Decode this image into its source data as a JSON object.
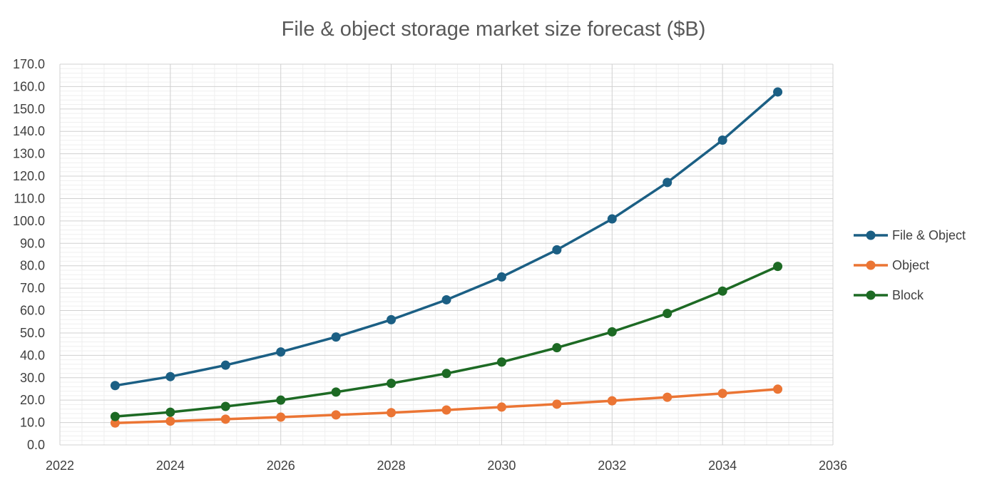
{
  "chart_data": {
    "type": "line",
    "title": "File & object storage market size forecast ($B)",
    "xlabel": "",
    "ylabel": "",
    "xlim": [
      2022,
      2036
    ],
    "ylim": [
      0,
      170
    ],
    "x_ticks": [
      2022,
      2024,
      2026,
      2028,
      2030,
      2032,
      2034,
      2036
    ],
    "x_tick_labels": [
      "2022",
      "2024",
      "2026",
      "2028",
      "2030",
      "2032",
      "2034",
      "2036"
    ],
    "y_ticks": [
      0,
      10,
      20,
      30,
      40,
      50,
      60,
      70,
      80,
      90,
      100,
      110,
      120,
      130,
      140,
      150,
      160,
      170
    ],
    "y_tick_labels": [
      "0.0",
      "10.0",
      "20.0",
      "30.0",
      "40.0",
      "50.0",
      "60.0",
      "70.0",
      "80.0",
      "90.0",
      "100.0",
      "110.0",
      "120.0",
      "130.0",
      "140.0",
      "150.0",
      "160.0",
      "170.0"
    ],
    "grid": true,
    "legend_position": "right",
    "x": [
      2023,
      2024,
      2025,
      2026,
      2027,
      2028,
      2029,
      2030,
      2031,
      2032,
      2033,
      2034,
      2035
    ],
    "series": [
      {
        "name": "File & Object",
        "color": "#1b5f84",
        "values": [
          26.5,
          30.5,
          35.6,
          41.5,
          48.2,
          55.9,
          64.8,
          75.0,
          87.1,
          100.9,
          117.2,
          136.1,
          157.6
        ]
      },
      {
        "name": "Object",
        "color": "#eb7534",
        "values": [
          9.8,
          10.6,
          11.5,
          12.4,
          13.4,
          14.4,
          15.6,
          16.9,
          18.2,
          19.7,
          21.3,
          23.0,
          24.9
        ]
      },
      {
        "name": "Block",
        "color": "#1d6a24",
        "values": [
          12.7,
          14.6,
          17.2,
          20.0,
          23.6,
          27.5,
          31.9,
          37.0,
          43.4,
          50.5,
          58.7,
          68.7,
          79.7
        ]
      }
    ]
  }
}
